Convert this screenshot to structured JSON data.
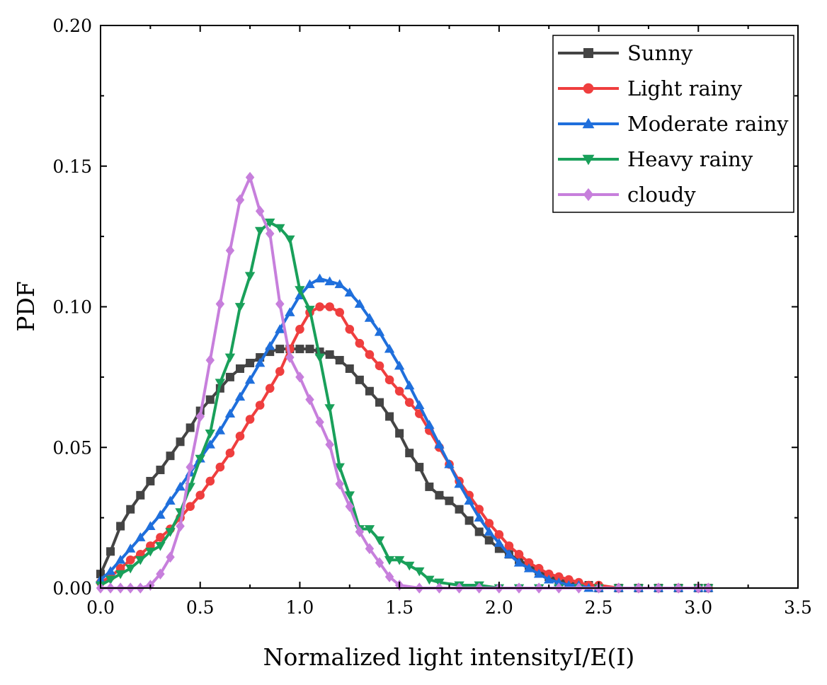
{
  "chart_data": {
    "type": "line",
    "title": "",
    "xlabel": "Normalized light intensityI/E(I)",
    "ylabel": "PDF",
    "xlim": [
      0.0,
      3.5
    ],
    "ylim": [
      0.0,
      0.2
    ],
    "xticks": [
      "0.0",
      "0.5",
      "1.0",
      "1.5",
      "2.0",
      "2.5",
      "3.0",
      "3.5"
    ],
    "yticks": [
      "0.00",
      "0.05",
      "0.10",
      "0.15",
      "0.20"
    ],
    "grid": false,
    "legend_position": "top-right",
    "series": [
      {
        "name": "Sunny",
        "color": "#444444",
        "marker": "square",
        "x": [
          0.0,
          0.05,
          0.1,
          0.15,
          0.2,
          0.25,
          0.3,
          0.35,
          0.4,
          0.45,
          0.5,
          0.55,
          0.6,
          0.65,
          0.7,
          0.75,
          0.8,
          0.85,
          0.9,
          0.95,
          1.0,
          1.05,
          1.1,
          1.15,
          1.2,
          1.25,
          1.3,
          1.35,
          1.4,
          1.45,
          1.5,
          1.55,
          1.6,
          1.65,
          1.7,
          1.75,
          1.8,
          1.85,
          1.9,
          1.95,
          2.0,
          2.05,
          2.1,
          2.15,
          2.2,
          2.25,
          2.3,
          2.35,
          2.4,
          2.45,
          2.5,
          2.6,
          2.7,
          2.8,
          2.9,
          3.0,
          3.05
        ],
        "y": [
          0.005,
          0.013,
          0.022,
          0.028,
          0.033,
          0.038,
          0.042,
          0.047,
          0.052,
          0.057,
          0.063,
          0.067,
          0.071,
          0.075,
          0.078,
          0.08,
          0.082,
          0.084,
          0.085,
          0.085,
          0.085,
          0.085,
          0.084,
          0.083,
          0.081,
          0.078,
          0.074,
          0.07,
          0.066,
          0.061,
          0.055,
          0.048,
          0.043,
          0.036,
          0.033,
          0.031,
          0.028,
          0.024,
          0.02,
          0.017,
          0.014,
          0.012,
          0.01,
          0.008,
          0.006,
          0.004,
          0.003,
          0.002,
          0.001,
          0.001,
          0.0,
          0.0,
          0.0,
          0.0,
          0.0,
          0.0,
          0.0
        ]
      },
      {
        "name": "Light rainy",
        "color": "#ef3e3e",
        "marker": "circle",
        "x": [
          0.0,
          0.05,
          0.1,
          0.15,
          0.2,
          0.25,
          0.3,
          0.35,
          0.4,
          0.45,
          0.5,
          0.55,
          0.6,
          0.65,
          0.7,
          0.75,
          0.8,
          0.85,
          0.9,
          0.95,
          1.0,
          1.05,
          1.1,
          1.15,
          1.2,
          1.25,
          1.3,
          1.35,
          1.4,
          1.45,
          1.5,
          1.55,
          1.6,
          1.65,
          1.7,
          1.75,
          1.8,
          1.85,
          1.9,
          1.95,
          2.0,
          2.05,
          2.1,
          2.15,
          2.2,
          2.25,
          2.3,
          2.35,
          2.4,
          2.45,
          2.5,
          2.6,
          2.7,
          2.8,
          2.9,
          3.0,
          3.05
        ],
        "y": [
          0.002,
          0.004,
          0.007,
          0.01,
          0.012,
          0.015,
          0.018,
          0.021,
          0.025,
          0.029,
          0.033,
          0.038,
          0.043,
          0.048,
          0.054,
          0.06,
          0.065,
          0.071,
          0.077,
          0.085,
          0.092,
          0.098,
          0.1,
          0.1,
          0.098,
          0.092,
          0.087,
          0.083,
          0.079,
          0.074,
          0.07,
          0.066,
          0.062,
          0.056,
          0.05,
          0.044,
          0.038,
          0.033,
          0.028,
          0.023,
          0.019,
          0.015,
          0.012,
          0.009,
          0.007,
          0.005,
          0.004,
          0.003,
          0.002,
          0.001,
          0.001,
          0.0,
          0.0,
          0.0,
          0.0,
          0.0,
          0.0
        ]
      },
      {
        "name": "Moderate rainy",
        "color": "#1f6fdc",
        "marker": "triangle-up",
        "x": [
          0.0,
          0.05,
          0.1,
          0.15,
          0.2,
          0.25,
          0.3,
          0.35,
          0.4,
          0.45,
          0.5,
          0.55,
          0.6,
          0.65,
          0.7,
          0.75,
          0.8,
          0.85,
          0.9,
          0.95,
          1.0,
          1.05,
          1.1,
          1.15,
          1.2,
          1.25,
          1.3,
          1.35,
          1.4,
          1.45,
          1.5,
          1.55,
          1.6,
          1.65,
          1.7,
          1.75,
          1.8,
          1.85,
          1.9,
          1.95,
          2.0,
          2.05,
          2.1,
          2.15,
          2.2,
          2.25,
          2.3,
          2.35,
          2.4,
          2.45,
          2.5,
          2.6,
          2.7,
          2.8,
          2.9,
          3.0,
          3.05
        ],
        "y": [
          0.003,
          0.006,
          0.01,
          0.014,
          0.018,
          0.022,
          0.026,
          0.031,
          0.036,
          0.041,
          0.046,
          0.051,
          0.056,
          0.062,
          0.068,
          0.074,
          0.08,
          0.086,
          0.092,
          0.098,
          0.104,
          0.108,
          0.11,
          0.109,
          0.108,
          0.105,
          0.101,
          0.096,
          0.091,
          0.085,
          0.079,
          0.072,
          0.065,
          0.058,
          0.051,
          0.044,
          0.037,
          0.031,
          0.025,
          0.02,
          0.016,
          0.012,
          0.009,
          0.007,
          0.005,
          0.003,
          0.002,
          0.001,
          0.001,
          0.0,
          0.0,
          0.0,
          0.0,
          0.0,
          0.0,
          0.0,
          0.0
        ]
      },
      {
        "name": "Heavy rainy",
        "color": "#19a05a",
        "marker": "triangle-down",
        "x": [
          0.0,
          0.05,
          0.1,
          0.15,
          0.2,
          0.25,
          0.3,
          0.35,
          0.4,
          0.45,
          0.5,
          0.55,
          0.6,
          0.65,
          0.7,
          0.75,
          0.8,
          0.85,
          0.9,
          0.95,
          1.0,
          1.05,
          1.1,
          1.15,
          1.2,
          1.25,
          1.3,
          1.35,
          1.4,
          1.45,
          1.5,
          1.55,
          1.6,
          1.65,
          1.7,
          1.8,
          1.9,
          2.0,
          2.1,
          2.2,
          2.3,
          2.4,
          2.5,
          2.6,
          2.7,
          2.8,
          2.9,
          3.0,
          3.05
        ],
        "y": [
          0.001,
          0.003,
          0.005,
          0.007,
          0.01,
          0.013,
          0.015,
          0.02,
          0.027,
          0.036,
          0.046,
          0.055,
          0.073,
          0.082,
          0.1,
          0.111,
          0.127,
          0.13,
          0.128,
          0.124,
          0.106,
          0.099,
          0.082,
          0.064,
          0.043,
          0.033,
          0.021,
          0.021,
          0.017,
          0.01,
          0.01,
          0.008,
          0.006,
          0.003,
          0.002,
          0.001,
          0.001,
          0.0,
          0.0,
          0.0,
          0.0,
          0.0,
          0.0,
          0.0,
          0.0,
          0.0,
          0.0,
          0.0,
          0.0
        ]
      },
      {
        "name": "cloudy",
        "color": "#c77fdc",
        "marker": "diamond",
        "x": [
          0.0,
          0.05,
          0.1,
          0.15,
          0.2,
          0.25,
          0.3,
          0.35,
          0.4,
          0.45,
          0.5,
          0.55,
          0.6,
          0.65,
          0.7,
          0.75,
          0.8,
          0.85,
          0.9,
          0.95,
          1.0,
          1.05,
          1.1,
          1.15,
          1.2,
          1.25,
          1.3,
          1.35,
          1.4,
          1.45,
          1.5,
          1.6,
          1.7,
          1.8,
          1.9,
          2.0,
          2.1,
          2.2,
          2.3,
          2.4,
          2.5,
          2.6,
          2.7,
          2.8,
          2.9,
          3.0,
          3.05
        ],
        "y": [
          0.0,
          0.0,
          0.0,
          0.0,
          0.0,
          0.001,
          0.005,
          0.011,
          0.022,
          0.043,
          0.061,
          0.081,
          0.101,
          0.12,
          0.138,
          0.146,
          0.134,
          0.126,
          0.101,
          0.082,
          0.075,
          0.067,
          0.059,
          0.051,
          0.037,
          0.029,
          0.02,
          0.014,
          0.009,
          0.004,
          0.001,
          0.0,
          0.0,
          0.0,
          0.0,
          0.0,
          0.0,
          0.0,
          0.0,
          0.0,
          0.0,
          0.0,
          0.0,
          0.0,
          0.0,
          0.0,
          0.0
        ]
      }
    ]
  }
}
